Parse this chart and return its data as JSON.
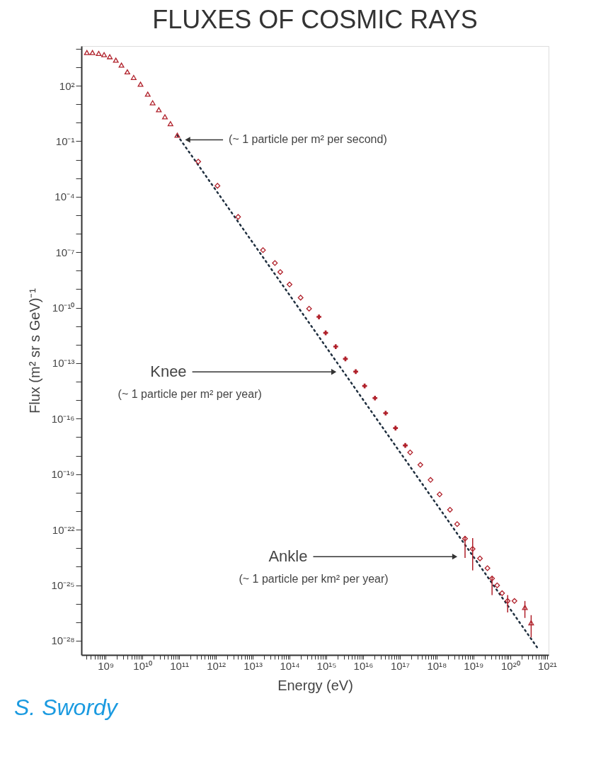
{
  "chart_data": {
    "type": "scatter",
    "title": "FLUXES OF COSMIC RAYS",
    "xlabel": "Energy (eV)",
    "ylabel": "Flux (m² sr s GeV)⁻¹",
    "log": "xy",
    "xlim": [
      220000000.0,
      1.1e+21
    ],
    "ylim": [
      1.7e-29,
      14000.0
    ],
    "xticks": [
      {
        "value": 300000000.0,
        "label": null
      },
      {
        "value": 400000000.0,
        "label": null
      },
      {
        "value": 500000000.0,
        "label": null
      },
      {
        "value": 600000000.0,
        "label": null
      },
      {
        "value": 700000000.0,
        "label": null
      },
      {
        "value": 800000000.0,
        "label": null
      },
      {
        "value": 900000000.0,
        "label": null
      },
      {
        "value": 1000000000.0,
        "label": "10⁹"
      },
      {
        "value": 2000000000.0,
        "label": null
      },
      {
        "value": 3000000000.0,
        "label": null
      },
      {
        "value": 4000000000.0,
        "label": null
      },
      {
        "value": 5000000000.0,
        "label": null
      },
      {
        "value": 6000000000.0,
        "label": null
      },
      {
        "value": 7000000000.0,
        "label": null
      },
      {
        "value": 8000000000.0,
        "label": null
      },
      {
        "value": 9000000000.0,
        "label": null
      },
      {
        "value": 10000000000.0,
        "label": "10¹⁰"
      },
      {
        "value": 20000000000.0,
        "label": null
      },
      {
        "value": 30000000000.0,
        "label": null
      },
      {
        "value": 40000000000.0,
        "label": null
      },
      {
        "value": 50000000000.0,
        "label": null
      },
      {
        "value": 60000000000.0,
        "label": null
      },
      {
        "value": 70000000000.0,
        "label": null
      },
      {
        "value": 80000000000.0,
        "label": null
      },
      {
        "value": 90000000000.0,
        "label": null
      },
      {
        "value": 100000000000.0,
        "label": "10¹¹"
      },
      {
        "value": 200000000000.0,
        "label": null
      },
      {
        "value": 300000000000.0,
        "label": null
      },
      {
        "value": 400000000000.0,
        "label": null
      },
      {
        "value": 500000000000.0,
        "label": null
      },
      {
        "value": 600000000000.0,
        "label": null
      },
      {
        "value": 700000000000.0,
        "label": null
      },
      {
        "value": 800000000000.0,
        "label": null
      },
      {
        "value": 900000000000.0,
        "label": null
      },
      {
        "value": 1000000000000.0,
        "label": "10¹²"
      },
      {
        "value": 2000000000000.0,
        "label": null
      },
      {
        "value": 3000000000000.0,
        "label": null
      },
      {
        "value": 4000000000000.0,
        "label": null
      },
      {
        "value": 5000000000000.0,
        "label": null
      },
      {
        "value": 6000000000000.0,
        "label": null
      },
      {
        "value": 7000000000000.0,
        "label": null
      },
      {
        "value": 8000000000000.0,
        "label": null
      },
      {
        "value": 9000000000000.0,
        "label": null
      },
      {
        "value": 10000000000000.0,
        "label": "10¹³"
      },
      {
        "value": 20000000000000.0,
        "label": null
      },
      {
        "value": 30000000000000.0,
        "label": null
      },
      {
        "value": 40000000000000.0,
        "label": null
      },
      {
        "value": 50000000000000.0,
        "label": null
      },
      {
        "value": 60000000000000.0,
        "label": null
      },
      {
        "value": 70000000000000.0,
        "label": null
      },
      {
        "value": 80000000000000.0,
        "label": null
      },
      {
        "value": 90000000000000.0,
        "label": null
      },
      {
        "value": 100000000000000.0,
        "label": "10¹⁴"
      },
      {
        "value": 200000000000000.0,
        "label": null
      },
      {
        "value": 300000000000000.0,
        "label": null
      },
      {
        "value": 400000000000000.0,
        "label": null
      },
      {
        "value": 500000000000000.0,
        "label": null
      },
      {
        "value": 600000000000000.0,
        "label": null
      },
      {
        "value": 700000000000000.0,
        "label": null
      },
      {
        "value": 800000000000000.0,
        "label": null
      },
      {
        "value": 900000000000000.0,
        "label": null
      },
      {
        "value": 1000000000000000.0,
        "label": "10¹⁵"
      },
      {
        "value": 2000000000000000.0,
        "label": null
      },
      {
        "value": 3000000000000000.0,
        "label": null
      },
      {
        "value": 4000000000000000.0,
        "label": null
      },
      {
        "value": 5000000000000000.0,
        "label": null
      },
      {
        "value": 6000000000000000.0,
        "label": null
      },
      {
        "value": 7000000000000000.0,
        "label": null
      },
      {
        "value": 8000000000000000.0,
        "label": null
      },
      {
        "value": 9000000000000000.0,
        "label": null
      },
      {
        "value": 1e+16,
        "label": "10¹⁶"
      },
      {
        "value": 2e+16,
        "label": null
      },
      {
        "value": 3e+16,
        "label": null
      },
      {
        "value": 4e+16,
        "label": null
      },
      {
        "value": 5e+16,
        "label": null
      },
      {
        "value": 6e+16,
        "label": null
      },
      {
        "value": 7e+16,
        "label": null
      },
      {
        "value": 8e+16,
        "label": null
      },
      {
        "value": 9e+16,
        "label": null
      },
      {
        "value": 1e+17,
        "label": "10¹⁷"
      },
      {
        "value": 2e+17,
        "label": null
      },
      {
        "value": 3e+17,
        "label": null
      },
      {
        "value": 4e+17,
        "label": null
      },
      {
        "value": 5e+17,
        "label": null
      },
      {
        "value": 6e+17,
        "label": null
      },
      {
        "value": 7e+17,
        "label": null
      },
      {
        "value": 8e+17,
        "label": null
      },
      {
        "value": 9e+17,
        "label": null
      },
      {
        "value": 1e+18,
        "label": "10¹⁸"
      },
      {
        "value": 2e+18,
        "label": null
      },
      {
        "value": 3e+18,
        "label": null
      },
      {
        "value": 4e+18,
        "label": null
      },
      {
        "value": 5e+18,
        "label": null
      },
      {
        "value": 6e+18,
        "label": null
      },
      {
        "value": 7e+18,
        "label": null
      },
      {
        "value": 8e+18,
        "label": null
      },
      {
        "value": 9e+18,
        "label": null
      },
      {
        "value": 1e+19,
        "label": "10¹⁹"
      },
      {
        "value": 2e+19,
        "label": null
      },
      {
        "value": 3e+19,
        "label": null
      },
      {
        "value": 4e+19,
        "label": null
      },
      {
        "value": 5e+19,
        "label": null
      },
      {
        "value": 6e+19,
        "label": null
      },
      {
        "value": 7e+19,
        "label": null
      },
      {
        "value": 8e+19,
        "label": null
      },
      {
        "value": 9e+19,
        "label": null
      },
      {
        "value": 1e+20,
        "label": "10²⁰"
      },
      {
        "value": 2e+20,
        "label": null
      },
      {
        "value": 3e+20,
        "label": null
      },
      {
        "value": 4e+20,
        "label": null
      },
      {
        "value": 5e+20,
        "label": null
      },
      {
        "value": 6e+20,
        "label": null
      },
      {
        "value": 7e+20,
        "label": null
      },
      {
        "value": 8e+20,
        "label": null
      },
      {
        "value": 9e+20,
        "label": null
      },
      {
        "value": 1e+21,
        "label": "10²¹"
      }
    ],
    "yticks": [
      {
        "value": 10000.0,
        "label": null
      },
      {
        "value": 1000.0,
        "label": null
      },
      {
        "value": 100.0,
        "label": "10²"
      },
      {
        "value": 10.0,
        "label": null
      },
      {
        "value": 1,
        "label": null
      },
      {
        "value": 0.1,
        "label": "10⁻¹"
      },
      {
        "value": 0.01,
        "label": null
      },
      {
        "value": 0.001,
        "label": null
      },
      {
        "value": 0.0001,
        "label": "10⁻⁴"
      },
      {
        "value": 1e-05,
        "label": null
      },
      {
        "value": 1e-06,
        "label": null
      },
      {
        "value": 1e-07,
        "label": "10⁻⁷"
      },
      {
        "value": 1e-08,
        "label": null
      },
      {
        "value": 1e-09,
        "label": null
      },
      {
        "value": 1e-10,
        "label": "10⁻¹⁰"
      },
      {
        "value": 1e-11,
        "label": null
      },
      {
        "value": 1e-12,
        "label": null
      },
      {
        "value": 1e-13,
        "label": "10⁻¹³"
      },
      {
        "value": 1e-14,
        "label": null
      },
      {
        "value": 1e-15,
        "label": null
      },
      {
        "value": 1e-16,
        "label": "10⁻¹⁶"
      },
      {
        "value": 1e-17,
        "label": null
      },
      {
        "value": 1e-18,
        "label": null
      },
      {
        "value": 1e-19,
        "label": "10⁻¹⁹"
      },
      {
        "value": 1e-20,
        "label": null
      },
      {
        "value": 1e-21,
        "label": null
      },
      {
        "value": 1e-22,
        "label": "10⁻²²"
      },
      {
        "value": 1e-23,
        "label": null
      },
      {
        "value": 1e-24,
        "label": null
      },
      {
        "value": 1e-25,
        "label": "10⁻²⁵"
      },
      {
        "value": 1e-26,
        "label": null
      },
      {
        "value": 1e-27,
        "label": null
      },
      {
        "value": 1e-28,
        "label": "10⁻²⁸"
      }
    ],
    "series": [
      {
        "type": "line",
        "line_style": "dotted",
        "marker": "none",
        "color": "#1f2f3f",
        "x": [
          89000000000.0,
          5.8e+20
        ],
        "values": [
          0.21,
          3.5e-29
        ]
      },
      {
        "marker": "triangle",
        "color": "#b0202a",
        "x": [
          310000000.0,
          440000000.0,
          650000000.0,
          910000000.0,
          1300000000.0,
          1900000000.0,
          2700000000.0,
          3900000000.0,
          5800000000.0,
          8900000000.0,
          14000000000.0,
          19000000000.0,
          28000000000.0,
          41000000000.0,
          58000000000.0,
          89000000000.0
        ],
        "values": [
          6200.0,
          6200.0,
          5600.0,
          4800.0,
          3700.0,
          2400.0,
          1300.0,
          560.0,
          280.0,
          120.0,
          35,
          12,
          5.0,
          2.1,
          0.89,
          0.21
        ]
      },
      {
        "marker": "diamond",
        "color": "#b0202a",
        "x": [
          330000000000.0,
          1100000000000.0,
          4000000000000.0,
          19000000000000.0,
          40000000000000.0,
          56000000000000.0,
          100000000000000.0,
          200000000000000.0,
          340000000000000.0
        ],
        "values": [
          0.0079,
          0.00039,
          8.1e-06,
          1.3e-07,
          2.6e-08,
          8.5e-09,
          1.8e-09,
          3.5e-10,
          8.9e-11
        ]
      },
      {
        "marker": "cross",
        "color": "#b0202a",
        "x": [
          630000000000000.0,
          960000000000000.0,
          1800000000000000.0,
          3300000000000000.0,
          6300000000000000.0,
          1.1e+16,
          2.1e+16,
          4.1e+16,
          7.6e+16,
          1.4e+17
        ],
        "values": [
          3.2e-11,
          4.4e-12,
          7.9e-13,
          1.7e-13,
          3.5e-14,
          5.9e-15,
          1.3e-15,
          2e-16,
          3.1e-17,
          3.6e-18
        ]
      },
      {
        "marker": "diamond",
        "color": "#b0202a",
        "x": [
          1.9e+17,
          3.6e+17,
          6.8e+17,
          1.2e+18,
          2.3e+18,
          3.6e+18,
          5.9e+18,
          9.5e+18,
          1.5e+19,
          2.4e+19,
          3.2e+19,
          4.4e+19,
          6e+19,
          8.5e+19,
          1.3e+20
        ],
        "values": [
          1.5e-18,
          3.2e-19,
          4.9e-20,
          8.1e-21,
          1.2e-21,
          2e-22,
          3.3e-23,
          9.1e-24,
          2.8e-24,
          8.3e-25,
          2.3e-25,
          9.8e-26,
          3.7e-26,
          1.4e-26,
          1.4e-26
        ],
        "errors": [
          null,
          null,
          null,
          null,
          null,
          null,
          [
            3e-24,
            4.6e-23
          ],
          [
            6.3e-25,
            3.5e-23
          ],
          null,
          null,
          [
            2.9e-26,
            3e-25
          ],
          null,
          null,
          [
            3.4e-27,
            2.9e-26
          ],
          null
        ]
      },
      {
        "marker": "triangle",
        "color": "#b0202a",
        "x": [
          2.5e+20,
          3.7e+20
        ],
        "values": [
          6.2e-27,
          9.3e-28
        ],
        "errors": [
          [
            1.7e-27,
            1.4e-26
          ],
          [
            1.5e-28,
            2.4e-27
          ]
        ]
      }
    ],
    "annotations": [
      {
        "text": "(~ 1 particle per m² per second)",
        "x": 170000000000.0,
        "y": 0.12
      },
      {
        "text": "Knee",
        "x": 1600000000000000.0,
        "y": 3.4e-14
      },
      "(~ 1 particle per m² per year)",
      {
        "text": "Ankle",
        "x": 3.1e+18,
        "y": 3.5e-24
      },
      "(~ 1 particle per km² per year)",
      "S. Swordy"
    ]
  }
}
